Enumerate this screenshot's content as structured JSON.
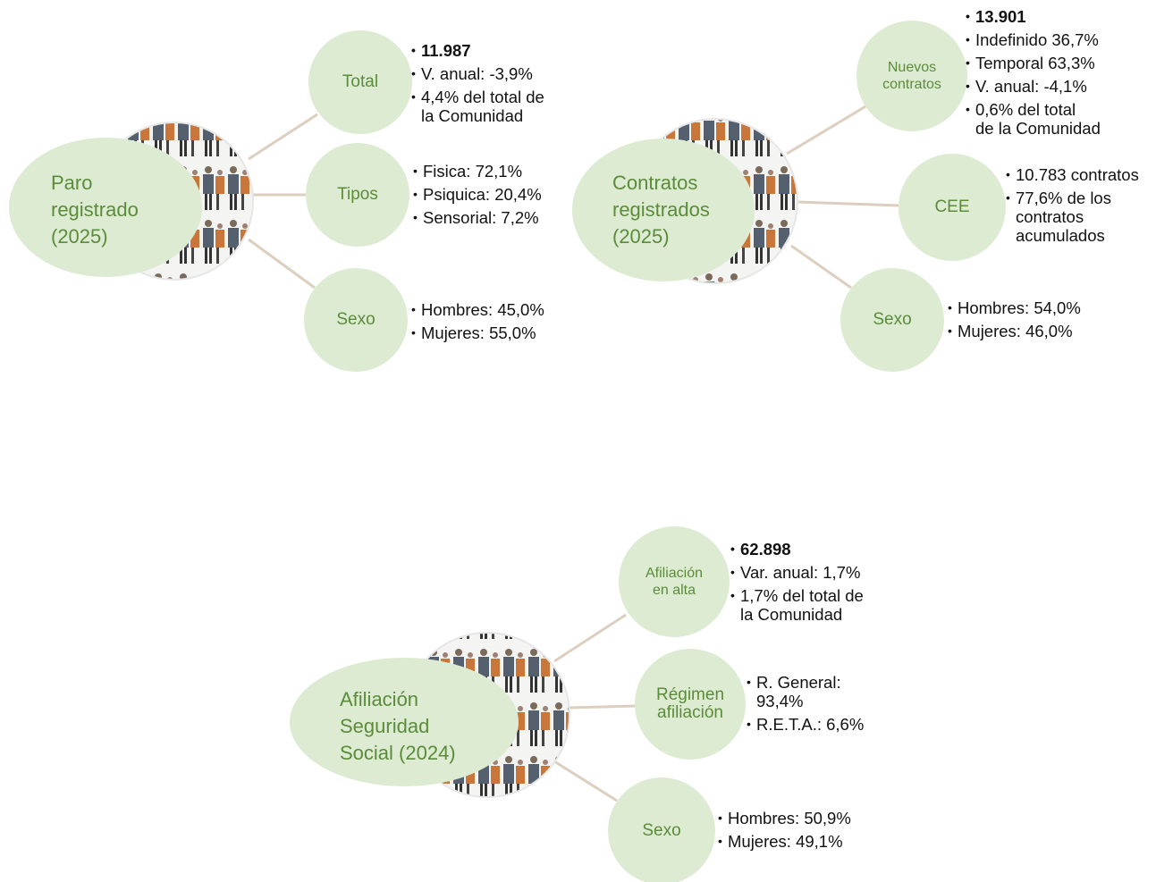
{
  "groups": [
    {
      "title": [
        "Paro",
        "registrado",
        "(2025)"
      ],
      "branches": [
        {
          "label": [
            "Total"
          ],
          "items": [
            [
              "11.987"
            ],
            [
              "V. anual: -3,9%"
            ],
            [
              "4,4% del total de",
              "la Comunidad"
            ]
          ]
        },
        {
          "label": [
            "Tipos"
          ],
          "items": [
            [
              "Fisica: 72,1%"
            ],
            [
              "Psiquica: 20,4%"
            ],
            [
              "Sensorial: 7,2%"
            ]
          ]
        },
        {
          "label": [
            "Sexo"
          ],
          "items": [
            [
              "Hombres:  45,0%"
            ],
            [
              "Mujeres:  55,0%"
            ]
          ]
        }
      ]
    },
    {
      "title": [
        "Contratos",
        "registrados",
        "(2025)"
      ],
      "branches": [
        {
          "label": [
            "Nuevos",
            "contratos"
          ],
          "items": [
            [
              "13.901"
            ],
            [
              "Indefinido 36,7%"
            ],
            [
              "Temporal 63,3%"
            ],
            [
              "V. anual: -4,1%"
            ],
            [
              " 0,6% del total",
              "de la Comunidad"
            ]
          ]
        },
        {
          "label": [
            "CEE"
          ],
          "items": [
            [
              "10.783 contratos"
            ],
            [
              "77,6% de los",
              "contratos",
              "acumulados"
            ]
          ]
        },
        {
          "label": [
            "Sexo"
          ],
          "items": [
            [
              "Hombres:  54,0%"
            ],
            [
              "Mujeres:   46,0%"
            ]
          ]
        }
      ]
    },
    {
      "title": [
        "Afiliación",
        "Seguridad",
        "Social (2024)"
      ],
      "branches": [
        {
          "label": [
            "Afiliación",
            "en alta"
          ],
          "items": [
            [
              "62.898"
            ],
            [
              "Var. anual: 1,7%"
            ],
            [
              "1,7% del total de",
              "la Comunidad"
            ]
          ]
        },
        {
          "label": [
            "Régimen",
            "afiliación"
          ],
          "items": [
            [
              "R. General:",
              "93,4%"
            ],
            [
              "R.E.T.A.: 6,6%"
            ]
          ]
        },
        {
          "label": [
            "Sexo"
          ],
          "items": [
            [
              "Hombres: 50,9%"
            ],
            [
              "Mujeres: 49,1%"
            ]
          ]
        }
      ]
    }
  ]
}
